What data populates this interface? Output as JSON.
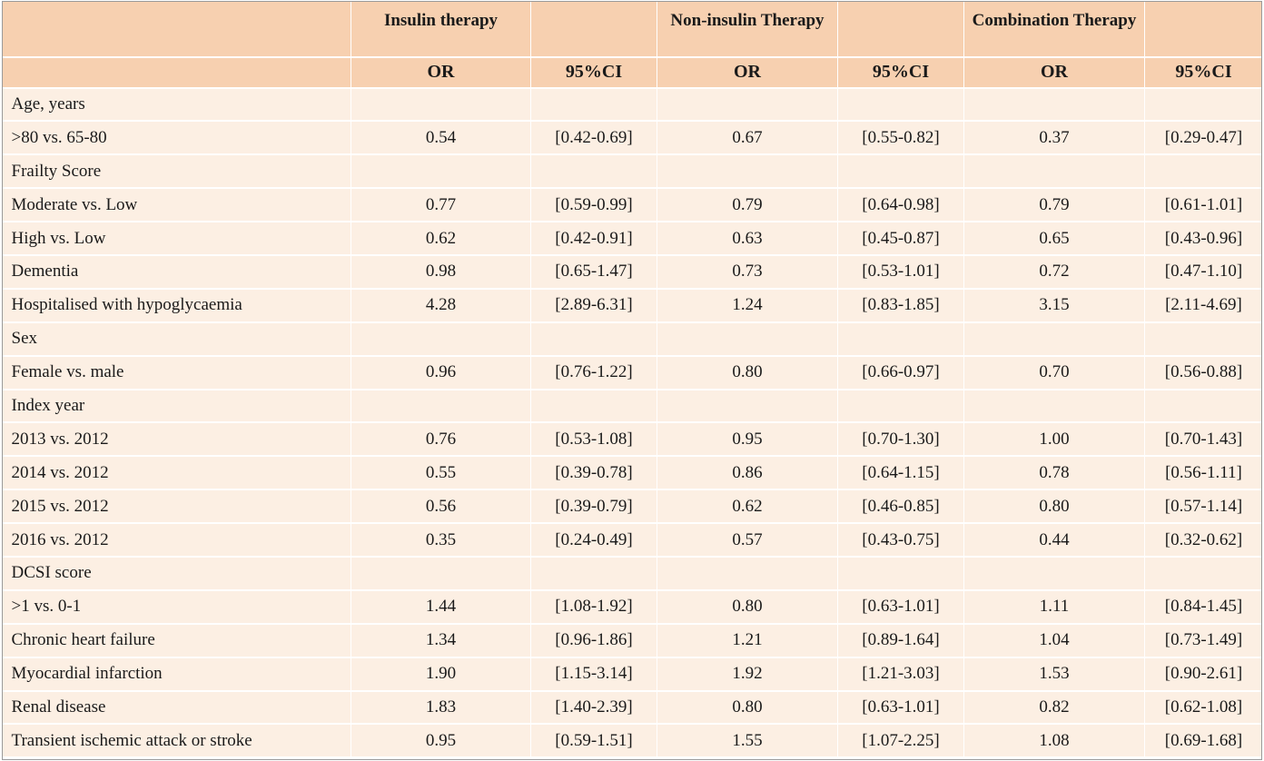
{
  "header": {
    "groups": [
      "",
      "Insulin therapy",
      "",
      "Non-insulin Therapy",
      "",
      "Combination Therapy",
      ""
    ],
    "subheaders": [
      "",
      "OR",
      "95%CI",
      "OR",
      "95%CI",
      "OR",
      "95%CI"
    ]
  },
  "rows": [
    {
      "label": "Age, years",
      "section": true,
      "cells": [
        "",
        "",
        "",
        "",
        "",
        ""
      ]
    },
    {
      "label": ">80 vs. 65-80",
      "section": false,
      "cells": [
        "0.54",
        "[0.42-0.69]",
        "0.67",
        "[0.55-0.82]",
        "0.37",
        "[0.29-0.47]"
      ]
    },
    {
      "label": "Frailty Score",
      "section": true,
      "cells": [
        "",
        "",
        "",
        "",
        "",
        ""
      ]
    },
    {
      "label": "Moderate vs. Low",
      "section": false,
      "cells": [
        "0.77",
        "[0.59-0.99]",
        "0.79",
        "[0.64-0.98]",
        "0.79",
        "[0.61-1.01]"
      ]
    },
    {
      "label": "High vs. Low",
      "section": false,
      "cells": [
        "0.62",
        "[0.42-0.91]",
        "0.63",
        "[0.45-0.87]",
        "0.65",
        "[0.43-0.96]"
      ]
    },
    {
      "label": "Dementia",
      "section": false,
      "cells": [
        "0.98",
        "[0.65-1.47]",
        "0.73",
        "[0.53-1.01]",
        "0.72",
        "[0.47-1.10]"
      ]
    },
    {
      "label": "Hospitalised with hypoglycaemia",
      "section": false,
      "cells": [
        "4.28",
        "[2.89-6.31]",
        "1.24",
        "[0.83-1.85]",
        "3.15",
        "[2.11-4.69]"
      ]
    },
    {
      "label": "Sex",
      "section": true,
      "cells": [
        "",
        "",
        "",
        "",
        "",
        ""
      ]
    },
    {
      "label": "Female vs. male",
      "section": false,
      "cells": [
        "0.96",
        "[0.76-1.22]",
        "0.80",
        "[0.66-0.97]",
        "0.70",
        "[0.56-0.88]"
      ]
    },
    {
      "label": "Index year",
      "section": true,
      "cells": [
        "",
        "",
        "",
        "",
        "",
        ""
      ]
    },
    {
      "label": "2013 vs. 2012",
      "section": false,
      "cells": [
        "0.76",
        "[0.53-1.08]",
        "0.95",
        "[0.70-1.30]",
        "1.00",
        "[0.70-1.43]"
      ]
    },
    {
      "label": "2014 vs. 2012",
      "section": false,
      "cells": [
        "0.55",
        "[0.39-0.78]",
        "0.86",
        "[0.64-1.15]",
        "0.78",
        "[0.56-1.11]"
      ]
    },
    {
      "label": "2015 vs. 2012",
      "section": false,
      "cells": [
        "0.56",
        "[0.39-0.79]",
        "0.62",
        "[0.46-0.85]",
        "0.80",
        "[0.57-1.14]"
      ]
    },
    {
      "label": "2016 vs. 2012",
      "section": false,
      "cells": [
        "0.35",
        "[0.24-0.49]",
        "0.57",
        "[0.43-0.75]",
        "0.44",
        "[0.32-0.62]"
      ]
    },
    {
      "label": "DCSI score",
      "section": true,
      "cells": [
        "",
        "",
        "",
        "",
        "",
        ""
      ]
    },
    {
      "label": ">1 vs. 0-1",
      "section": false,
      "cells": [
        "1.44",
        "[1.08-1.92]",
        "0.80",
        "[0.63-1.01]",
        "1.11",
        "[0.84-1.45]"
      ]
    },
    {
      "label": "Chronic heart failure",
      "section": false,
      "cells": [
        "1.34",
        "[0.96-1.86]",
        "1.21",
        "[0.89-1.64]",
        "1.04",
        "[0.73-1.49]"
      ]
    },
    {
      "label": "Myocardial infarction",
      "section": false,
      "cells": [
        "1.90",
        "[1.15-3.14]",
        "1.92",
        "[1.21-3.03]",
        "1.53",
        "[0.90-2.61]"
      ]
    },
    {
      "label": "Renal disease",
      "section": false,
      "cells": [
        "1.83",
        "[1.40-2.39]",
        "0.80",
        "[0.63-1.01]",
        "0.82",
        "[0.62-1.08]"
      ]
    },
    {
      "label": "Transient ischemic attack or stroke",
      "section": false,
      "cells": [
        "0.95",
        "[0.59-1.51]",
        "1.55",
        "[1.07-2.25]",
        "1.08",
        "[0.69-1.68]"
      ]
    }
  ]
}
